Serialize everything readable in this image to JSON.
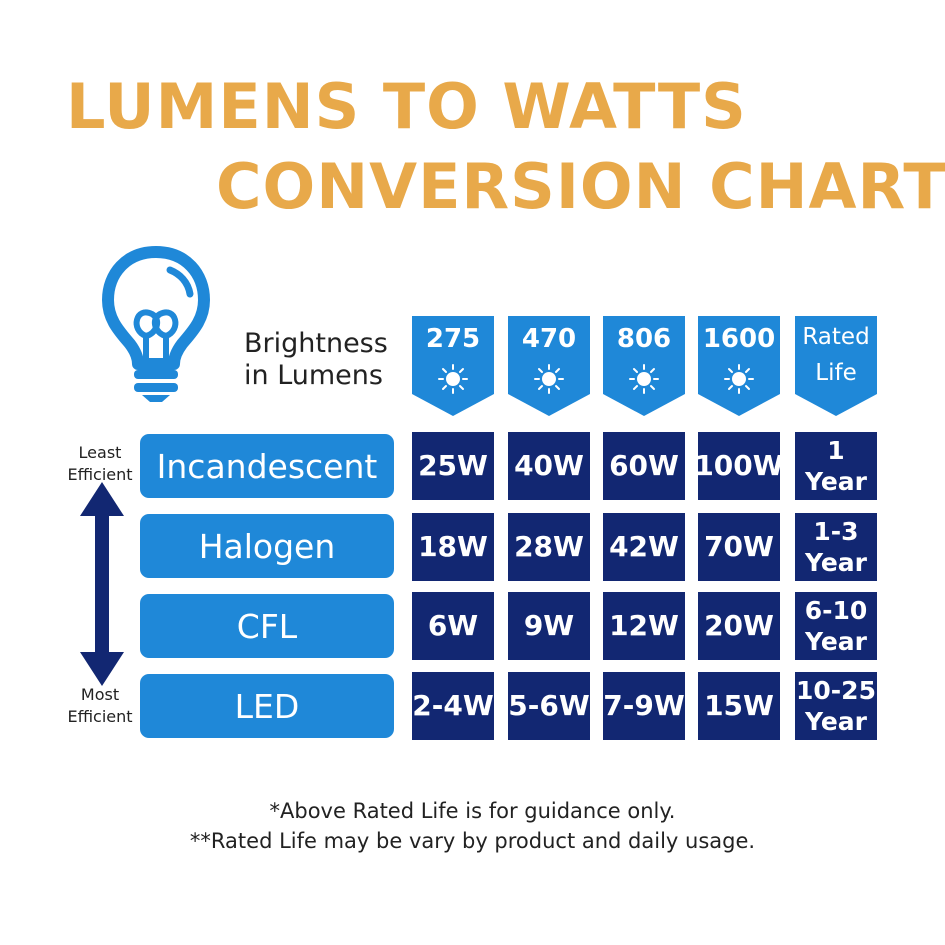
{
  "title": {
    "line1": "LUMENS TO WATTS",
    "line2": "CONVERSION CHART"
  },
  "brightness_label": {
    "line1": "Brightness",
    "line2": "in Lumens"
  },
  "columns": [
    {
      "label": "275",
      "icon": "sun-icon"
    },
    {
      "label": "470",
      "icon": "sun-icon"
    },
    {
      "label": "806",
      "icon": "sun-icon"
    },
    {
      "label": "1600",
      "icon": "sun-icon"
    },
    {
      "label_line1": "Rated",
      "label_line2": "Life"
    }
  ],
  "efficiency": {
    "top_line1": "Least",
    "top_line2": "Efficient",
    "bottom_line1": "Most",
    "bottom_line2": "Efficient"
  },
  "rows": [
    {
      "name": "Incandescent",
      "values": [
        "25W",
        "40W",
        "60W",
        "100W"
      ],
      "life_line1": "1",
      "life_line2": "Year"
    },
    {
      "name": "Halogen",
      "values": [
        "18W",
        "28W",
        "42W",
        "70W"
      ],
      "life_line1": "1-3",
      "life_line2": "Year"
    },
    {
      "name": "CFL",
      "values": [
        "6W",
        "9W",
        "12W",
        "20W"
      ],
      "life_line1": "6-10",
      "life_line2": "Year"
    },
    {
      "name": "LED",
      "values": [
        "2-4W",
        "5-6W",
        "7-9W",
        "15W"
      ],
      "life_line1": "10-25",
      "life_line2": "Year"
    }
  ],
  "notes": {
    "line1": "*Above Rated Life is for guidance only.",
    "line2": "**Rated Life may be vary by product and daily usage."
  },
  "colors": {
    "title": "#e8a94a",
    "accent_blue": "#1f88d8",
    "cell_navy": "#122772",
    "arrow": "#122772"
  }
}
